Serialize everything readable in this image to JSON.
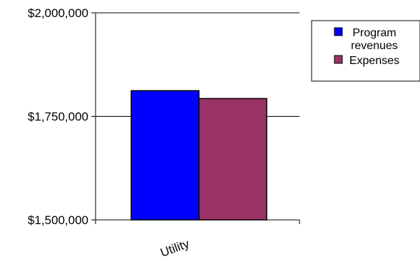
{
  "chart_data": {
    "type": "bar",
    "categories": [
      "Utility"
    ],
    "series": [
      {
        "name": "Program revenues",
        "name_lines": [
          "Program",
          "revenues"
        ],
        "values": [
          1812000
        ],
        "color": "#0000FF"
      },
      {
        "name": "Expenses",
        "name_lines": [
          "Expenses"
        ],
        "values": [
          1793000
        ],
        "color": "#993366"
      }
    ],
    "title": "",
    "xlabel": "",
    "ylabel": "",
    "ylim": [
      1500000,
      2000000
    ],
    "yticks": [
      1500000,
      1750000,
      2000000
    ],
    "ytick_labels": [
      "$1,500,000",
      "$1,750,000",
      "$2,000,000"
    ],
    "grid": true,
    "legend": "right"
  }
}
